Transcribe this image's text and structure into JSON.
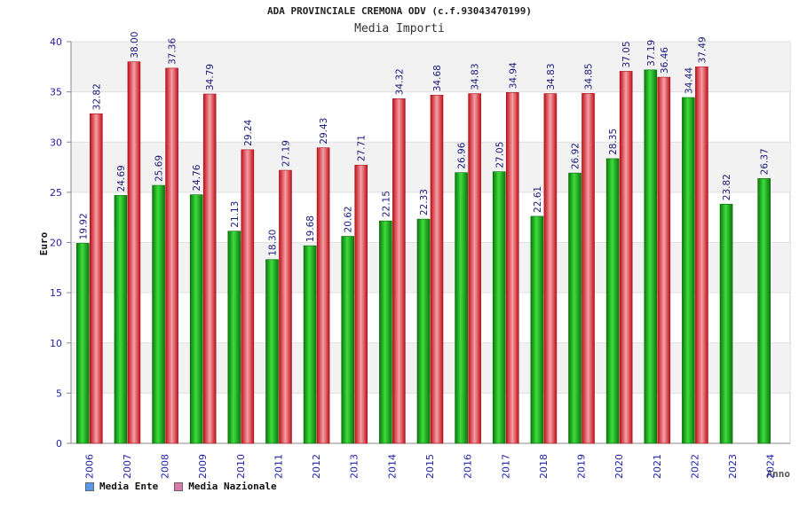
{
  "chart_data": {
    "type": "bar",
    "title": "ADA PROVINCIALE CREMONA ODV (c.f.93043470199)",
    "subtitle": "Media Importi",
    "ylabel": "Euro",
    "xlabel": "Anno",
    "ylim": [
      0,
      40
    ],
    "yticks": [
      "0",
      "5",
      "10",
      "15",
      "20",
      "25",
      "30",
      "35",
      "40"
    ],
    "categories": [
      "2006",
      "2007",
      "2008",
      "2009",
      "2010",
      "2011",
      "2012",
      "2013",
      "2014",
      "2015",
      "2016",
      "2017",
      "2018",
      "2019",
      "2020",
      "2021",
      "2022",
      "2023",
      "2024"
    ],
    "series": [
      {
        "name": "Media Ente",
        "color": "#22aa22",
        "values": [
          19.92,
          24.69,
          25.69,
          24.76,
          21.13,
          18.3,
          19.68,
          20.62,
          22.15,
          22.33,
          26.96,
          27.05,
          22.61,
          26.92,
          28.35,
          37.19,
          34.44,
          23.82,
          26.37
        ],
        "labels": [
          "19.92",
          "24.69",
          "25.69",
          "24.76",
          "21.13",
          "18.30",
          "19.68",
          "20.62",
          "22.15",
          "22.33",
          "26.96",
          "27.05",
          "22.61",
          "26.92",
          "28.35",
          "37.19",
          "34.44",
          "23.82",
          "26.37"
        ]
      },
      {
        "name": "Media Nazionale",
        "color": "#e8303a",
        "values": [
          32.82,
          38.0,
          37.36,
          34.79,
          29.24,
          27.19,
          29.43,
          27.71,
          34.32,
          34.68,
          34.83,
          34.94,
          34.83,
          34.85,
          37.05,
          36.46,
          37.49,
          null,
          null
        ],
        "labels": [
          "32.82",
          "38.00",
          "37.36",
          "34.79",
          "29.24",
          "27.19",
          "29.43",
          "27.71",
          "34.32",
          "34.68",
          "34.83",
          "34.94",
          "34.83",
          "34.85",
          "37.05",
          "36.46",
          "37.49",
          null,
          null
        ]
      }
    ],
    "legend": [
      {
        "label": "Media Ente",
        "color": "#5599ee"
      },
      {
        "label": "Media Nazionale",
        "color": "#dd77aa"
      }
    ],
    "grid": true,
    "legend_position": "bottom-left"
  }
}
